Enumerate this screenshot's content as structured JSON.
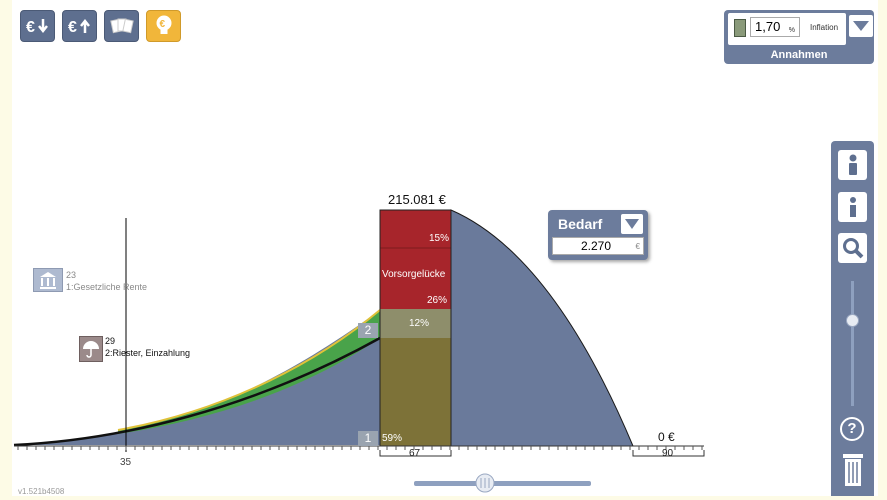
{
  "toolbar": {
    "buttons": [
      {
        "name": "euro-down-icon",
        "active": false
      },
      {
        "name": "euro-up-icon",
        "active": false
      },
      {
        "name": "cards-icon",
        "active": false
      },
      {
        "name": "lightbulb-euro-icon",
        "active": true
      }
    ]
  },
  "annahmen": {
    "value": "1,70",
    "unit": "%",
    "label": "Inflation",
    "title": "Annahmen"
  },
  "bedarf": {
    "title": "Bedarf",
    "value": "2.270",
    "unit": "€"
  },
  "chart": {
    "peak_label": "215.081 €",
    "end_label": "0 €",
    "segments": {
      "top_pct": "15%",
      "gap_label": "Vorsorgelücke",
      "gap_pct": "26%",
      "riester_pct": "12%",
      "base_pct": "59%"
    },
    "layer_numbers": [
      "2",
      "1"
    ],
    "axis": {
      "current_age": "35",
      "retirement_age": "67",
      "end_age": "90"
    }
  },
  "markers": [
    {
      "count": "23",
      "label": "1:Gesetzliche Rente"
    },
    {
      "count": "29",
      "label": "2:Riester, Einzahlung"
    }
  ],
  "colors": {
    "navy": "#5e6f8f",
    "area_blue": "#6a7a9b",
    "gap_red": "#a7252b",
    "riester_green": "#49a34a",
    "olive_base": "#7d7238",
    "olive_light": "#8e8e6b",
    "bulb_yellow": "#f1b63a"
  },
  "version": "v1.521b4508"
}
